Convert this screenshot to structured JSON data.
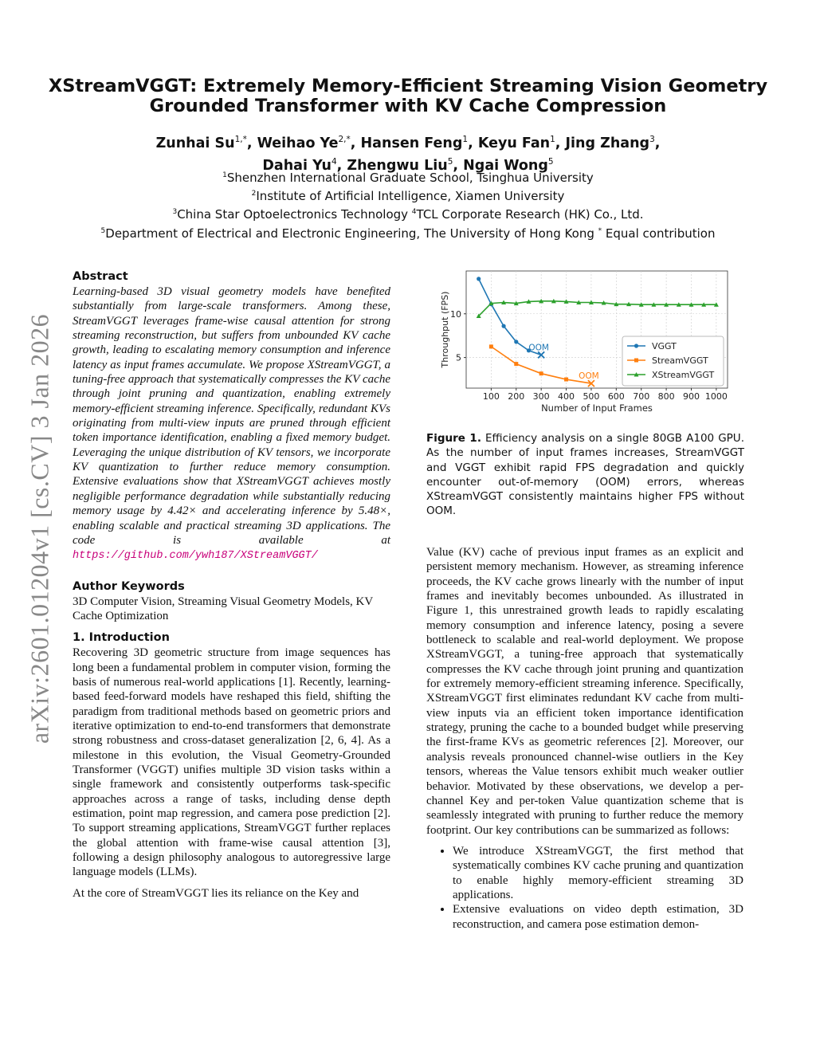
{
  "arxiv_id": "arXiv:2601.01204v1  [cs.CV]  3 Jan 2026",
  "title_line1": "XStreamVGGT: Extremely Memory-Efficient Streaming Vision Geometry",
  "title_line2": "Grounded Transformer with KV Cache Compression",
  "authors": [
    {
      "name": "Zunhai Su",
      "sup": "1,*"
    },
    {
      "name": "Weihao Ye",
      "sup": "2,*"
    },
    {
      "name": "Hansen Feng",
      "sup": "1"
    },
    {
      "name": "Keyu Fan",
      "sup": "1"
    },
    {
      "name": "Jing Zhang",
      "sup": "3"
    },
    {
      "name": "Dahai Yu",
      "sup": "4"
    },
    {
      "name": "Zhengwu Liu",
      "sup": "5"
    },
    {
      "name": "Ngai Wong",
      "sup": "5"
    }
  ],
  "affiliations": {
    "a1": "Shenzhen International Graduate School, Tsinghua University",
    "a2": "Institute of Artificial Intelligence, Xiamen University",
    "a3": "China Star Optoelectronics Technology",
    "a4": "TCL Corporate Research (HK) Co., Ltd.",
    "a5": "Department of Electrical and Electronic Engineering, The University of Hong Kong",
    "equal": "Equal contribution"
  },
  "abstract": {
    "heading": "Abstract",
    "text": "Learning-based 3D visual geometry models have benefited substantially from large-scale transformers. Among these, StreamVGGT leverages frame-wise causal attention for strong streaming reconstruction, but suffers from unbounded KV cache growth, leading to escalating memory consumption and inference latency as input frames accumulate. We propose XStreamVGGT, a tuning-free approach that systematically compresses the KV cache through joint pruning and quantization, enabling extremely memory-efficient streaming inference. Specifically, redundant KVs originating from multi-view inputs are pruned through efficient token importance identification, enabling a fixed memory budget. Leveraging the unique distribution of KV tensors, we incorporate KV quantization to further reduce memory consumption. Extensive evaluations show that XStreamVGGT achieves mostly negligible performance degradation while substantially reducing memory usage by 4.42× and accelerating inference by 5.48×, enabling scalable and practical streaming 3D applications. The code is available at",
    "link": "https://github.com/ywh187/XStreamVGGT/"
  },
  "keywords": {
    "heading": "Author Keywords",
    "text": "3D Computer Vision, Streaming Visual Geometry Models, KV Cache Optimization"
  },
  "intro": {
    "heading": "1.   Introduction",
    "p1": "Recovering 3D geometric structure from image sequences has long been a fundamental problem in computer vision, forming the basis of numerous real-world applications [1]. Recently, learning-based feed-forward models have reshaped this field, shifting the paradigm from traditional methods based on geometric priors and iterative optimization to end-to-end transformers that demonstrate strong robustness and cross-dataset generalization [2, 6, 4]. As a milestone in this evolution, the Visual Geometry-Grounded Transformer (VGGT) unifies multiple 3D vision tasks within a single framework and consistently outperforms task-specific approaches across a range of tasks, including dense depth estimation, point map regression, and camera pose prediction [2]. To support streaming applications, StreamVGGT further replaces the global attention with frame-wise causal attention [3], following a design philosophy analogous to autoregressive large language models (LLMs).",
    "p2": "At the core of StreamVGGT lies its reliance on the Key and",
    "p3": "Value (KV) cache of previous input frames as an explicit and persistent memory mechanism. However, as streaming inference proceeds, the KV cache grows linearly with the number of input frames and inevitably becomes unbounded. As illustrated in Figure 1, this unrestrained growth leads to rapidly escalating memory consumption and inference latency, posing a severe bottleneck to scalable and real-world deployment. We propose XStreamVGGT, a tuning-free approach that systematically compresses the KV cache through joint pruning and quantization for extremely memory-efficient streaming inference. Specifically, XStreamVGGT first eliminates redundant KV cache from multi-view inputs via an efficient token importance identification strategy, pruning the cache to a bounded budget while preserving the first-frame KVs as geometric references [2]. Moreover, our analysis reveals pronounced channel-wise outliers in the Key tensors, whereas the Value tensors exhibit much weaker outlier behavior. Motivated by these observations, we develop a per-channel Key and per-token Value quantization scheme that is seamlessly integrated with pruning to further reduce the memory footprint. Our key contributions can be summarized as follows:",
    "bullets": [
      "We introduce XStreamVGGT, the first method that systematically combines KV cache pruning and quantization to enable highly memory-efficient streaming 3D applications.",
      "Extensive evaluations on video depth estimation, 3D reconstruction, and camera pose estimation demon-"
    ]
  },
  "figure": {
    "caption_label": "Figure 1.",
    "caption_text": "Efficiency analysis on a single 80GB A100 GPU. As the number of input frames increases, StreamVGGT and VGGT exhibit rapid FPS degradation and quickly encounter out-of-memory (OOM) errors, whereas XStreamVGGT consistently maintains higher FPS without OOM."
  },
  "chart_data": {
    "type": "line",
    "xlabel": "Number of Input Frames",
    "ylabel": "Throughput (FPS)",
    "xlim": [
      0,
      1045
    ],
    "ylim": [
      1.5,
      14.9
    ],
    "xticks": [
      100,
      200,
      300,
      400,
      500,
      600,
      700,
      800,
      900,
      1000
    ],
    "yticks": [
      5,
      10
    ],
    "grid": true,
    "legend_position": "right",
    "series": [
      {
        "name": "VGGT",
        "color": "#1f77b4",
        "marker": "circle",
        "x": [
          50,
          100,
          150,
          200,
          250,
          300
        ],
        "y": [
          14.0,
          11.1,
          8.6,
          6.8,
          5.8,
          5.3
        ],
        "end_marker": "x",
        "annotation": "OOM"
      },
      {
        "name": "StreamVGGT",
        "color": "#ff7f0e",
        "marker": "square",
        "x": [
          100,
          200,
          300,
          400,
          500
        ],
        "y": [
          6.25,
          4.27,
          3.17,
          2.5,
          2.04
        ],
        "end_marker": "x",
        "annotation": "OOM"
      },
      {
        "name": "XStreamVGGT",
        "color": "#2ca02c",
        "marker": "triangle",
        "x": [
          50,
          100,
          150,
          200,
          250,
          300,
          350,
          400,
          450,
          500,
          550,
          600,
          650,
          700,
          750,
          800,
          850,
          900,
          950,
          1000
        ],
        "y": [
          9.75,
          11.2,
          11.3,
          11.2,
          11.4,
          11.45,
          11.45,
          11.4,
          11.3,
          11.3,
          11.25,
          11.1,
          11.1,
          11.05,
          11.05,
          11.05,
          11.05,
          11.05,
          11.05,
          11.05
        ]
      }
    ]
  }
}
